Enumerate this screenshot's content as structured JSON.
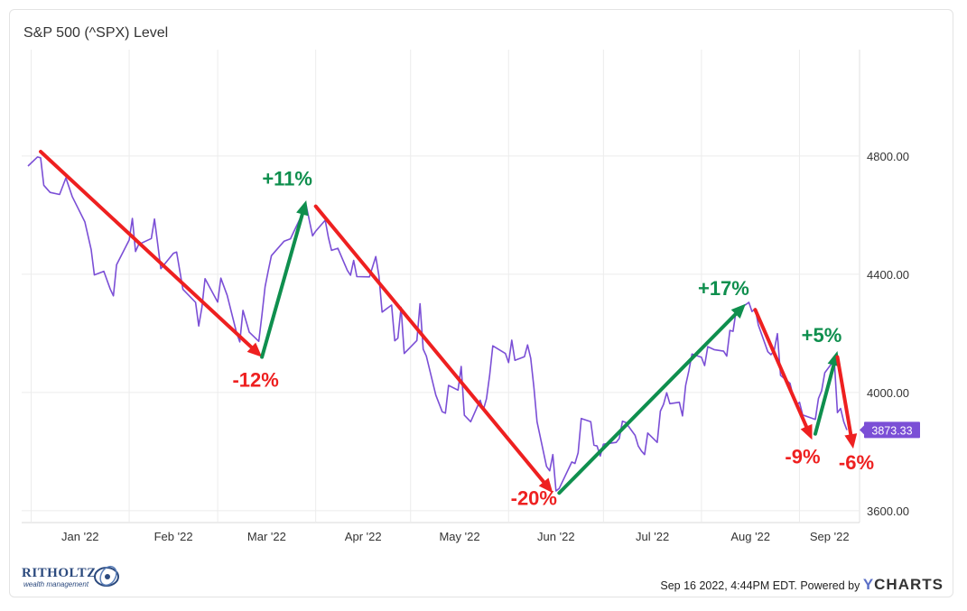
{
  "header": {
    "title": "S&P 500 (^SPX) Level"
  },
  "footer": {
    "timestamp": "Sep 16 2022, 4:44PM EDT. Powered by",
    "brand_prefix": "Y",
    "brand_rest": "CHARTS",
    "logo_name": "RITHOLTZ",
    "logo_sub": "wealth management"
  },
  "chart_data": {
    "type": "line",
    "title": "S&P 500 (^SPX) Level",
    "x_tick_labels": [
      "Jan '22",
      "Feb '22",
      "Mar '22",
      "Apr '22",
      "May '22",
      "Jun '22",
      "Jul '22",
      "Aug '22",
      "Sep '22"
    ],
    "y_tick_labels": [
      "4800.00",
      "4400.00",
      "4000.00",
      "3600.00"
    ],
    "y_ticks": [
      4800,
      4400,
      4000,
      3600
    ],
    "ylim": [
      3560,
      5160
    ],
    "xlim": [
      "2021-12-29",
      "2022-09-20"
    ],
    "grid": true,
    "last_value": 3873.33,
    "last_value_label": "3873.33",
    "series": [
      {
        "color": "#7b4fd6",
        "points": [
          [
            "2021-12-31",
            4766
          ],
          [
            "2022-01-03",
            4797
          ],
          [
            "2022-01-04",
            4794
          ],
          [
            "2022-01-05",
            4701
          ],
          [
            "2022-01-07",
            4677
          ],
          [
            "2022-01-10",
            4670
          ],
          [
            "2022-01-12",
            4726
          ],
          [
            "2022-01-14",
            4663
          ],
          [
            "2022-01-18",
            4577
          ],
          [
            "2022-01-20",
            4483
          ],
          [
            "2022-01-21",
            4398
          ],
          [
            "2022-01-24",
            4410
          ],
          [
            "2022-01-26",
            4350
          ],
          [
            "2022-01-27",
            4327
          ],
          [
            "2022-01-28",
            4432
          ],
          [
            "2022-02-01",
            4516
          ],
          [
            "2022-02-02",
            4589
          ],
          [
            "2022-02-03",
            4477
          ],
          [
            "2022-02-04",
            4501
          ],
          [
            "2022-02-08",
            4521
          ],
          [
            "2022-02-09",
            4587
          ],
          [
            "2022-02-10",
            4504
          ],
          [
            "2022-02-11",
            4419
          ],
          [
            "2022-02-15",
            4471
          ],
          [
            "2022-02-16",
            4475
          ],
          [
            "2022-02-18",
            4349
          ],
          [
            "2022-02-22",
            4305
          ],
          [
            "2022-02-23",
            4225
          ],
          [
            "2022-02-24",
            4288
          ],
          [
            "2022-02-25",
            4385
          ],
          [
            "2022-03-01",
            4306
          ],
          [
            "2022-03-02",
            4387
          ],
          [
            "2022-03-04",
            4329
          ],
          [
            "2022-03-07",
            4201
          ],
          [
            "2022-03-08",
            4171
          ],
          [
            "2022-03-09",
            4278
          ],
          [
            "2022-03-11",
            4204
          ],
          [
            "2022-03-14",
            4173
          ],
          [
            "2022-03-15",
            4262
          ],
          [
            "2022-03-16",
            4358
          ],
          [
            "2022-03-17",
            4412
          ],
          [
            "2022-03-18",
            4463
          ],
          [
            "2022-03-22",
            4512
          ],
          [
            "2022-03-24",
            4520
          ],
          [
            "2022-03-25",
            4543
          ],
          [
            "2022-03-29",
            4632
          ],
          [
            "2022-03-31",
            4530
          ],
          [
            "2022-04-01",
            4546
          ],
          [
            "2022-04-04",
            4583
          ],
          [
            "2022-04-05",
            4525
          ],
          [
            "2022-04-06",
            4481
          ],
          [
            "2022-04-08",
            4488
          ],
          [
            "2022-04-11",
            4413
          ],
          [
            "2022-04-12",
            4397
          ],
          [
            "2022-04-13",
            4447
          ],
          [
            "2022-04-14",
            4392
          ],
          [
            "2022-04-18",
            4391
          ],
          [
            "2022-04-20",
            4460
          ],
          [
            "2022-04-21",
            4394
          ],
          [
            "2022-04-22",
            4272
          ],
          [
            "2022-04-25",
            4296
          ],
          [
            "2022-04-26",
            4175
          ],
          [
            "2022-04-27",
            4184
          ],
          [
            "2022-04-28",
            4288
          ],
          [
            "2022-04-29",
            4132
          ],
          [
            "2022-05-03",
            4176
          ],
          [
            "2022-05-04",
            4300
          ],
          [
            "2022-05-05",
            4147
          ],
          [
            "2022-05-06",
            4123
          ],
          [
            "2022-05-09",
            3991
          ],
          [
            "2022-05-11",
            3935
          ],
          [
            "2022-05-12",
            3930
          ],
          [
            "2022-05-13",
            4024
          ],
          [
            "2022-05-16",
            4008
          ],
          [
            "2022-05-17",
            4088
          ],
          [
            "2022-05-18",
            3923
          ],
          [
            "2022-05-20",
            3901
          ],
          [
            "2022-05-23",
            3974
          ],
          [
            "2022-05-24",
            3941
          ],
          [
            "2022-05-25",
            3979
          ],
          [
            "2022-05-26",
            4058
          ],
          [
            "2022-05-27",
            4158
          ],
          [
            "2022-05-31",
            4132
          ],
          [
            "2022-06-01",
            4101
          ],
          [
            "2022-06-02",
            4177
          ],
          [
            "2022-06-03",
            4109
          ],
          [
            "2022-06-06",
            4121
          ],
          [
            "2022-06-07",
            4161
          ],
          [
            "2022-06-08",
            4116
          ],
          [
            "2022-06-09",
            4018
          ],
          [
            "2022-06-10",
            3901
          ],
          [
            "2022-06-13",
            3750
          ],
          [
            "2022-06-14",
            3735
          ],
          [
            "2022-06-15",
            3790
          ],
          [
            "2022-06-16",
            3667
          ],
          [
            "2022-06-17",
            3675
          ],
          [
            "2022-06-21",
            3765
          ],
          [
            "2022-06-22",
            3760
          ],
          [
            "2022-06-23",
            3796
          ],
          [
            "2022-06-24",
            3912
          ],
          [
            "2022-06-27",
            3901
          ],
          [
            "2022-06-28",
            3822
          ],
          [
            "2022-06-29",
            3819
          ],
          [
            "2022-06-30",
            3785
          ],
          [
            "2022-07-01",
            3825
          ],
          [
            "2022-07-05",
            3831
          ],
          [
            "2022-07-06",
            3845
          ],
          [
            "2022-07-07",
            3903
          ],
          [
            "2022-07-08",
            3899
          ],
          [
            "2022-07-11",
            3855
          ],
          [
            "2022-07-12",
            3819
          ],
          [
            "2022-07-13",
            3802
          ],
          [
            "2022-07-14",
            3790
          ],
          [
            "2022-07-15",
            3863
          ],
          [
            "2022-07-18",
            3831
          ],
          [
            "2022-07-19",
            3937
          ],
          [
            "2022-07-20",
            3960
          ],
          [
            "2022-07-21",
            3999
          ],
          [
            "2022-07-22",
            3962
          ],
          [
            "2022-07-25",
            3967
          ],
          [
            "2022-07-26",
            3921
          ],
          [
            "2022-07-27",
            4024
          ],
          [
            "2022-07-28",
            4073
          ],
          [
            "2022-07-29",
            4130
          ],
          [
            "2022-08-01",
            4119
          ],
          [
            "2022-08-02",
            4091
          ],
          [
            "2022-08-03",
            4155
          ],
          [
            "2022-08-05",
            4145
          ],
          [
            "2022-08-08",
            4140
          ],
          [
            "2022-08-09",
            4123
          ],
          [
            "2022-08-10",
            4210
          ],
          [
            "2022-08-11",
            4207
          ],
          [
            "2022-08-12",
            4280
          ],
          [
            "2022-08-15",
            4297
          ],
          [
            "2022-08-16",
            4305
          ],
          [
            "2022-08-17",
            4274
          ],
          [
            "2022-08-18",
            4284
          ],
          [
            "2022-08-19",
            4228
          ],
          [
            "2022-08-22",
            4138
          ],
          [
            "2022-08-23",
            4128
          ],
          [
            "2022-08-24",
            4141
          ],
          [
            "2022-08-25",
            4199
          ],
          [
            "2022-08-26",
            4058
          ],
          [
            "2022-08-29",
            4031
          ],
          [
            "2022-08-30",
            3986
          ],
          [
            "2022-08-31",
            3955
          ],
          [
            "2022-09-01",
            3967
          ],
          [
            "2022-09-02",
            3924
          ],
          [
            "2022-09-06",
            3909
          ],
          [
            "2022-09-07",
            3980
          ],
          [
            "2022-09-08",
            4006
          ],
          [
            "2022-09-09",
            4067
          ],
          [
            "2022-09-12",
            4110
          ],
          [
            "2022-09-13",
            3932
          ],
          [
            "2022-09-14",
            3946
          ],
          [
            "2022-09-15",
            3901
          ],
          [
            "2022-09-16",
            3873
          ]
        ]
      }
    ],
    "annotations": [
      {
        "label": "-12%",
        "direction": "down",
        "color": "#ee2020",
        "from": [
          "2022-01-04",
          4815
        ],
        "to": [
          "2022-03-15",
          4120
        ],
        "text_at": [
          "2022-03-13",
          4020
        ]
      },
      {
        "label": "+11%",
        "direction": "up",
        "color": "#0f8f4e",
        "from": [
          "2022-03-15",
          4120
        ],
        "to": [
          "2022-03-29",
          4650
        ],
        "text_at": [
          "2022-03-23",
          4700
        ]
      },
      {
        "label": "-20%",
        "direction": "down",
        "color": "#ee2020",
        "from": [
          "2022-04-01",
          4630
        ],
        "to": [
          "2022-06-15",
          3660
        ],
        "text_at": [
          "2022-06-09",
          3620
        ]
      },
      {
        "label": "+17%",
        "direction": "up",
        "color": "#0f8f4e",
        "from": [
          "2022-06-17",
          3660
        ],
        "to": [
          "2022-08-15",
          4300
        ],
        "text_at": [
          "2022-08-08",
          4330
        ]
      },
      {
        "label": "-9%",
        "direction": "down",
        "color": "#ee2020",
        "from": [
          "2022-08-18",
          4280
        ],
        "to": [
          "2022-09-05",
          3840
        ],
        "text_at": [
          "2022-09-02",
          3760
        ]
      },
      {
        "label": "+5%",
        "direction": "up",
        "color": "#0f8f4e",
        "from": [
          "2022-09-06",
          3860
        ],
        "to": [
          "2022-09-13",
          4140
        ],
        "text_at": [
          "2022-09-08",
          4170
        ]
      },
      {
        "label": "-6%",
        "direction": "down",
        "color": "#ee2020",
        "from": [
          "2022-09-13",
          4120
        ],
        "to": [
          "2022-09-18",
          3810
        ],
        "text_at": [
          "2022-09-19",
          3740
        ]
      }
    ]
  }
}
